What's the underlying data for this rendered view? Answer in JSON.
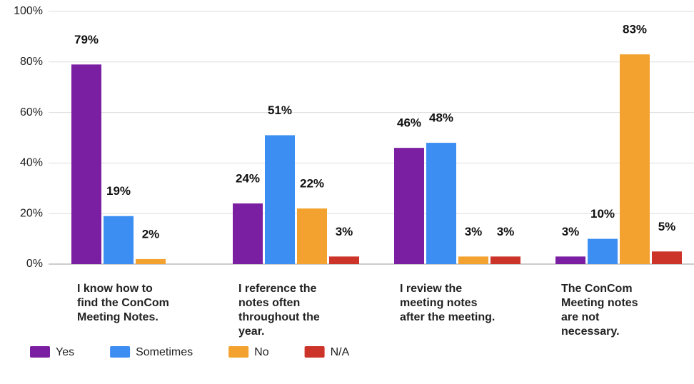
{
  "chart_data": {
    "type": "bar",
    "categories": [
      "I know how to find the ConCom Meeting Notes.",
      "I reference the notes often throughout the year.",
      "I review the meeting notes after the meeting.",
      "The ConCom Meeting notes are not necessary."
    ],
    "series": [
      {
        "name": "Yes",
        "color": "#7b1fa2",
        "values": [
          79,
          24,
          46,
          3
        ],
        "value_labels": [
          "79%",
          "24%",
          "46%",
          "3%"
        ]
      },
      {
        "name": "Sometimes",
        "color": "#3d8ef2",
        "values": [
          19,
          51,
          48,
          10
        ],
        "value_labels": [
          "19%",
          "51%",
          "48%",
          "10%"
        ]
      },
      {
        "name": "No",
        "color": "#f3a12f",
        "values": [
          2,
          22,
          3,
          83
        ],
        "value_labels": [
          "2%",
          "22%",
          "3%",
          "83%"
        ]
      },
      {
        "name": "N/A",
        "color": "#cc3329",
        "values": [
          null,
          3,
          3,
          5
        ],
        "value_labels": [
          null,
          "3%",
          "3%",
          "5%"
        ]
      }
    ],
    "ylim": [
      0,
      100
    ],
    "yticks": [
      {
        "value": 0,
        "label": "0%"
      },
      {
        "value": 20,
        "label": "20%"
      },
      {
        "value": 40,
        "label": "40%"
      },
      {
        "value": 60,
        "label": "60%"
      },
      {
        "value": 80,
        "label": "80%"
      },
      {
        "value": 100,
        "label": "100%"
      }
    ],
    "grid": true,
    "legend": "bottom"
  }
}
